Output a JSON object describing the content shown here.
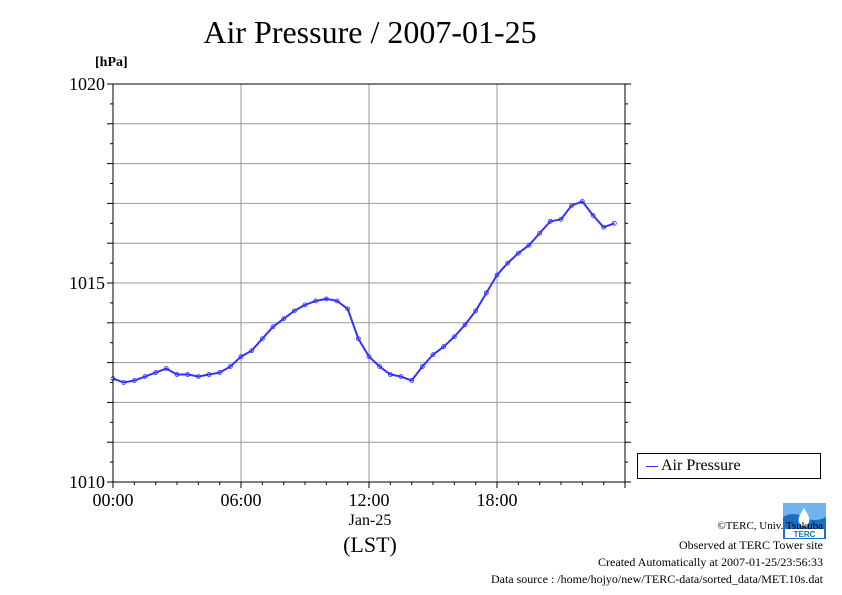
{
  "chart_data": {
    "type": "line",
    "title": "Air Pressure / 2007-01-25",
    "ylabel": "[hPa]",
    "xlabel": "(LST)",
    "x_date_label": "Jan-25",
    "ylim": [
      1010,
      1020
    ],
    "xlim": [
      "00:00",
      "24:00"
    ],
    "yticks": [
      "1010",
      "1015",
      "1020"
    ],
    "xticks": [
      "00:00",
      "06:00",
      "12:00",
      "18:00"
    ],
    "grid": true,
    "legend": "right",
    "series": [
      {
        "name": "Air Pressure",
        "color": "#3333ff",
        "x": [
          "00:00",
          "00:30",
          "01:00",
          "01:30",
          "02:00",
          "02:30",
          "03:00",
          "03:30",
          "04:00",
          "04:30",
          "05:00",
          "05:30",
          "06:00",
          "06:30",
          "07:00",
          "07:30",
          "08:00",
          "08:30",
          "09:00",
          "09:30",
          "10:00",
          "10:30",
          "11:00",
          "11:30",
          "12:00",
          "12:30",
          "13:00",
          "13:30",
          "14:00",
          "14:30",
          "15:00",
          "15:30",
          "16:00",
          "16:30",
          "17:00",
          "17:30",
          "18:00",
          "18:30",
          "19:00",
          "19:30",
          "20:00",
          "20:30",
          "21:00",
          "21:30",
          "22:00",
          "22:30",
          "23:00",
          "23:30"
        ],
        "values": [
          1012.6,
          1012.5,
          1012.55,
          1012.65,
          1012.75,
          1012.85,
          1012.7,
          1012.7,
          1012.65,
          1012.7,
          1012.75,
          1012.9,
          1013.15,
          1013.3,
          1013.6,
          1013.9,
          1014.1,
          1014.3,
          1014.45,
          1014.55,
          1014.6,
          1014.55,
          1014.35,
          1013.6,
          1013.15,
          1012.9,
          1012.7,
          1012.65,
          1012.55,
          1012.9,
          1013.2,
          1013.4,
          1013.65,
          1013.95,
          1014.3,
          1014.75,
          1015.2,
          1015.5,
          1015.75,
          1015.95,
          1016.25,
          1016.55,
          1016.6,
          1016.95,
          1017.05,
          1016.7,
          1016.4,
          1016.5
        ]
      }
    ]
  },
  "footer": {
    "copyright": "©TERC, Univ. Tsukuba",
    "observed": "Observed at TERC Tower site",
    "created": "Created Automatically at 2007-01-25/23:56:33",
    "source": "Data source : /home/hojyo/new/TERC-data/sorted_data/MET.10s.dat",
    "logo_text": "TERC"
  }
}
